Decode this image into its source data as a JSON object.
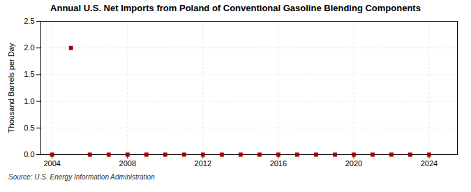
{
  "chart_data": {
    "type": "scatter",
    "title": "Annual U.S. Net Imports from Poland of Conventional Gasoline Blending Components",
    "ylabel": "Thousand Barrels per Day",
    "source": "Source: U.S. Energy Information Administration",
    "x": [
      2004,
      2005,
      2006,
      2007,
      2008,
      2009,
      2010,
      2011,
      2012,
      2013,
      2014,
      2015,
      2016,
      2017,
      2018,
      2019,
      2020,
      2021,
      2022,
      2023,
      2024
    ],
    "values": [
      0.0,
      2.0,
      0.0,
      0.0,
      0.0,
      0.0,
      0.0,
      0.0,
      0.0,
      0.0,
      0.0,
      0.0,
      0.0,
      0.0,
      0.0,
      0.0,
      0.0,
      0.0,
      0.0,
      0.0,
      0.0
    ],
    "color": "#aa0000",
    "marker": "square",
    "xlim": [
      2003.4,
      2025.5
    ],
    "xticks": [
      2004,
      2008,
      2012,
      2016,
      2020,
      2024
    ],
    "ylim": [
      0.0,
      2.5
    ],
    "yticks": [
      {
        "value": 0.0,
        "label": "0.0"
      },
      0.5,
      {
        "value": 1.0,
        "label": "1.0"
      },
      1.5,
      {
        "value": 2.0,
        "label": "2.0"
      },
      2.5
    ],
    "grid": true
  }
}
